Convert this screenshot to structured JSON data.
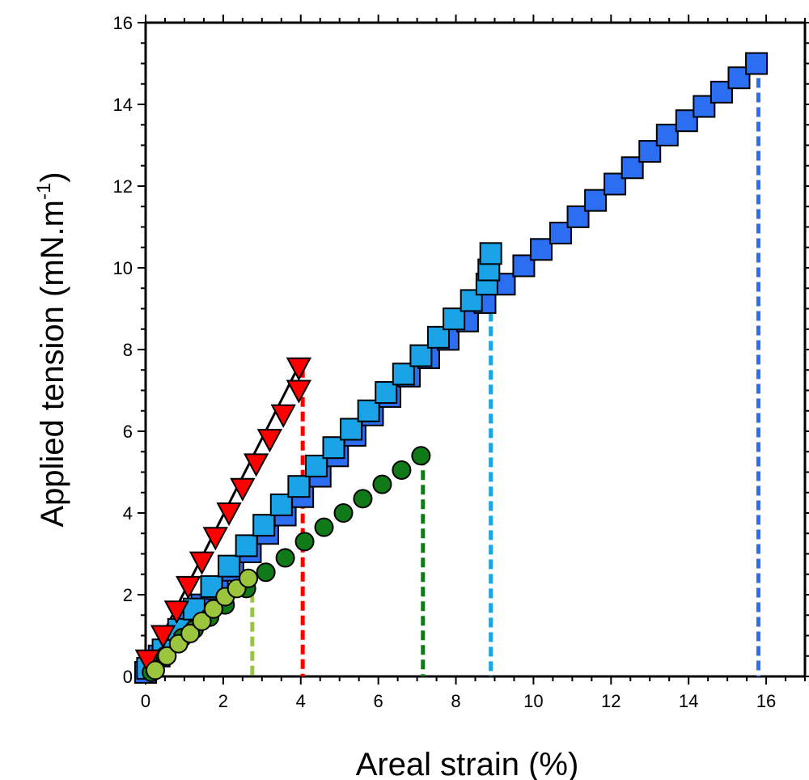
{
  "chart_data": {
    "type": "scatter",
    "title": "",
    "xlabel": "Areal strain (%)",
    "ylabel": {
      "main": "Applied tension (mN.m",
      "superscript": "-1",
      "close": ")"
    },
    "xlim": [
      0,
      17
    ],
    "ylim": [
      0,
      16
    ],
    "xticks": [
      0,
      2,
      4,
      6,
      8,
      10,
      12,
      14,
      16
    ],
    "yticks": [
      0,
      2,
      4,
      6,
      8,
      10,
      12,
      14,
      16
    ],
    "grid": false,
    "legend": "none",
    "series": [
      {
        "name": "blue-squares",
        "marker": "square",
        "color": "#2b6ef2",
        "x": [
          0,
          0.35,
          0.7,
          1.05,
          1.45,
          1.85,
          2.25,
          2.7,
          3.15,
          3.6,
          4.05,
          4.5,
          4.95,
          5.4,
          5.85,
          6.3,
          6.8,
          7.3,
          7.8,
          8.3,
          8.75,
          9.25,
          9.75,
          10.2,
          10.7,
          11.15,
          11.6,
          12.1,
          12.55,
          13.0,
          13.45,
          13.95,
          14.4,
          14.85,
          15.3,
          15.75
        ],
        "y": [
          0.1,
          0.5,
          0.9,
          1.3,
          1.75,
          2.15,
          2.6,
          3.05,
          3.5,
          3.95,
          4.4,
          4.9,
          5.4,
          5.9,
          6.4,
          6.85,
          7.35,
          7.8,
          8.25,
          8.7,
          9.15,
          9.6,
          10.05,
          10.45,
          10.85,
          11.25,
          11.65,
          12.05,
          12.45,
          12.85,
          13.25,
          13.6,
          13.95,
          14.3,
          14.65,
          15.0
        ],
        "end_marker_line": 15.8
      },
      {
        "name": "light-blue-squares",
        "marker": "square",
        "color": "#1aa3e6",
        "x": [
          0.05,
          0.45,
          0.85,
          1.25,
          1.7,
          2.15,
          2.6,
          3.05,
          3.5,
          3.95,
          4.4,
          4.85,
          5.3,
          5.75,
          6.2,
          6.65,
          7.1,
          7.55,
          7.95,
          8.4,
          8.8
        ],
        "y": [
          0.2,
          0.65,
          1.15,
          1.65,
          2.2,
          2.7,
          3.2,
          3.7,
          4.2,
          4.65,
          5.15,
          5.6,
          6.05,
          6.5,
          6.95,
          7.4,
          7.85,
          8.3,
          8.75,
          9.2,
          9.6
        ],
        "extra_points": [
          [
            8.85,
            9.95
          ],
          [
            8.9,
            10.35
          ]
        ],
        "end_marker_line": 8.9
      },
      {
        "name": "red-triangles",
        "marker": "triangle-down",
        "color": "#ff0000",
        "x": [
          0.05,
          0.45,
          0.8,
          1.1,
          1.45,
          1.8,
          2.15,
          2.5,
          2.85,
          3.2,
          3.55,
          3.95
        ],
        "y": [
          0.4,
          1.0,
          1.6,
          2.2,
          2.8,
          3.4,
          4.0,
          4.6,
          5.2,
          5.8,
          6.4,
          7.0
        ],
        "extra_points": [
          [
            3.95,
            7.55
          ]
        ],
        "end_marker_line": 4.05
      },
      {
        "name": "green-circles",
        "marker": "circle",
        "color": "#0f7a17",
        "x": [
          0.15,
          0.5,
          0.95,
          1.25,
          1.65,
          2.05,
          2.6,
          3.1,
          3.6,
          4.1,
          4.6,
          5.1,
          5.6,
          6.1,
          6.6,
          7.1
        ],
        "y": [
          0.1,
          0.5,
          0.95,
          1.15,
          1.45,
          1.75,
          2.15,
          2.55,
          2.9,
          3.3,
          3.65,
          4.0,
          4.35,
          4.7,
          5.05,
          5.4
        ],
        "end_marker_line": 7.15
      },
      {
        "name": "yellow-green-circles",
        "marker": "circle",
        "color": "#9bc53d",
        "x": [
          0.25,
          0.55,
          0.85,
          1.15,
          1.45,
          1.75,
          2.05,
          2.35,
          2.65
        ],
        "y": [
          0.15,
          0.5,
          0.8,
          1.05,
          1.35,
          1.65,
          1.95,
          2.15,
          2.4
        ],
        "end_marker_line": 2.75
      }
    ],
    "fit_lines": [
      {
        "series": "red-triangles",
        "from": [
          0,
          0.2
        ],
        "to": [
          4.0,
          7.7
        ]
      },
      {
        "series": "blue-squares",
        "from": [
          0,
          0
        ],
        "to": [
          4.0,
          4.8
        ]
      }
    ]
  }
}
